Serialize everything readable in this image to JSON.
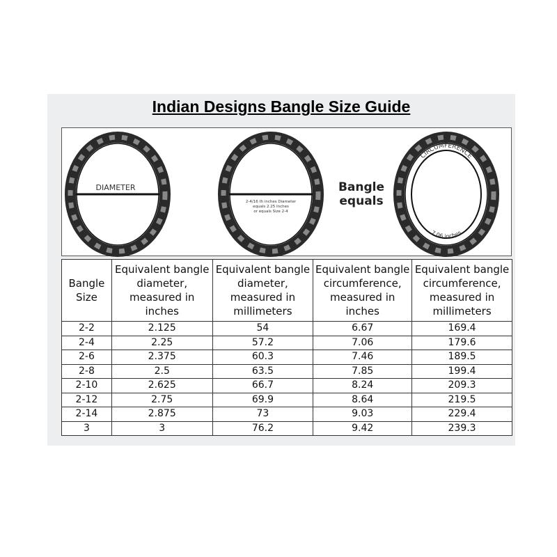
{
  "title": "Indian Designs Bangle Size Guide",
  "illustration": {
    "diameter_label": "DIAMETER",
    "example_note": [
      "2-4/16 th inches Diameter",
      "equals 2.25 Inches",
      "or equals Size 2-4"
    ],
    "equals_text": [
      "Bangle",
      "equals"
    ],
    "circumference_label": "CIRCUMFERENCE",
    "circumference_value": "7.06 inches"
  },
  "table": {
    "headers": [
      "Bangle Size",
      "Equivalent bangle diameter, measured in inches",
      "Equivalent bangle diameter, measured in millimeters",
      "Equivalent bangle circumference, measured in inches",
      "Equivalent bangle circumference, measured in millimeters"
    ],
    "rows": [
      [
        "2-2",
        "2.125",
        "54",
        "6.67",
        "169.4"
      ],
      [
        "2-4",
        "2.25",
        "57.2",
        "7.06",
        "179.6"
      ],
      [
        "2-6",
        "2.375",
        "60.3",
        "7.46",
        "189.5"
      ],
      [
        "2-8",
        "2.5",
        "63.5",
        "7.85",
        "199.4"
      ],
      [
        "2-10",
        "2.625",
        "66.7",
        "8.24",
        "209.3"
      ],
      [
        "2-12",
        "2.75",
        "69.9",
        "8.64",
        "219.5"
      ],
      [
        "2-14",
        "2.875",
        "73",
        "9.03",
        "229.4"
      ],
      [
        "3",
        "3",
        "76.2",
        "9.42",
        "239.3"
      ]
    ]
  }
}
